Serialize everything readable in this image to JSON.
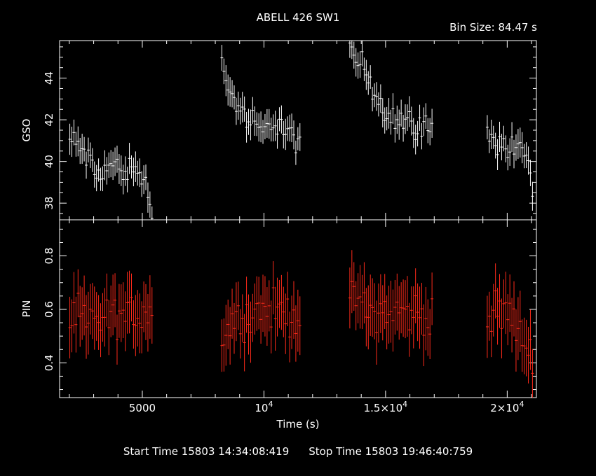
{
  "header": {
    "title": "ABELL 426 SW1",
    "bin_size": "Bin Size: 84.47 s"
  },
  "footer": {
    "start": "Start Time 15803 14:34:08:419",
    "stop": "Stop Time 15803 19:46:40:759"
  },
  "colors": {
    "gso": "#ffffff",
    "pin": "#ff2a1a",
    "frame": "#ffffff",
    "background": "#000000"
  },
  "chart_data": [
    {
      "type": "scatter",
      "panel": "top",
      "title": "ABELL 426 SW1",
      "xlabel": "",
      "ylabel": "GSO",
      "xlim": [
        1600,
        21200
      ],
      "ylim": [
        37.2,
        45.8
      ],
      "yticks": [
        38,
        40,
        42,
        44
      ],
      "segments": [
        [
          2020,
          5420
        ],
        [
          8270,
          11480
        ],
        [
          13530,
          16970
        ],
        [
          19180,
          21050
        ]
      ],
      "bin": 84.47,
      "anchors": [
        [
          [
            2020,
            41.0
          ],
          [
            2600,
            40.5
          ],
          [
            3100,
            39.3
          ],
          [
            3700,
            39.8
          ],
          [
            4300,
            39.6
          ],
          [
            4900,
            39.5
          ],
          [
            5420,
            38.0
          ]
        ],
        [
          [
            8270,
            44.5
          ],
          [
            8800,
            42.9
          ],
          [
            9400,
            41.9
          ],
          [
            10000,
            41.3
          ],
          [
            10500,
            42.1
          ],
          [
            11000,
            41.3
          ],
          [
            11480,
            40.9
          ]
        ],
        [
          [
            13530,
            45.0
          ],
          [
            14100,
            44.6
          ],
          [
            14600,
            43.2
          ],
          [
            15200,
            42.2
          ],
          [
            15800,
            41.9
          ],
          [
            16400,
            41.7
          ],
          [
            16970,
            41.4
          ]
        ],
        [
          [
            19180,
            41.6
          ],
          [
            19600,
            41.0
          ],
          [
            20000,
            40.6
          ],
          [
            20500,
            40.7
          ],
          [
            20900,
            40.2
          ],
          [
            21050,
            38.2
          ]
        ]
      ],
      "error": 0.65,
      "scatter": 0.6
    },
    {
      "type": "scatter",
      "panel": "bottom",
      "xlabel": "Time (s)",
      "ylabel": "PIN",
      "xlim": [
        1600,
        21200
      ],
      "ylim": [
        0.27,
        0.935
      ],
      "yticks": [
        0.4,
        0.6,
        0.8
      ],
      "xticks": [
        {
          "value": 5000,
          "label": "5000"
        },
        {
          "value": 10000,
          "label": "10",
          "sup": "4"
        },
        {
          "value": 15000,
          "label": "1.5×10",
          "sup": "4"
        },
        {
          "value": 20000,
          "label": "2×10",
          "sup": "4"
        }
      ],
      "segments": [
        [
          2020,
          5420
        ],
        [
          8270,
          11480
        ],
        [
          13530,
          16970
        ],
        [
          19180,
          21050
        ]
      ],
      "bin": 84.47,
      "anchors": [
        [
          [
            2020,
            0.56
          ],
          [
            3000,
            0.55
          ],
          [
            4000,
            0.57
          ],
          [
            5420,
            0.6
          ]
        ],
        [
          [
            8270,
            0.5
          ],
          [
            9000,
            0.57
          ],
          [
            10000,
            0.6
          ],
          [
            11480,
            0.58
          ]
        ],
        [
          [
            13530,
            0.63
          ],
          [
            14500,
            0.6
          ],
          [
            15500,
            0.59
          ],
          [
            16970,
            0.58
          ]
        ],
        [
          [
            19180,
            0.55
          ],
          [
            20000,
            0.6
          ],
          [
            21050,
            0.42
          ]
        ]
      ],
      "error": 0.105,
      "scatter": 0.065
    }
  ]
}
